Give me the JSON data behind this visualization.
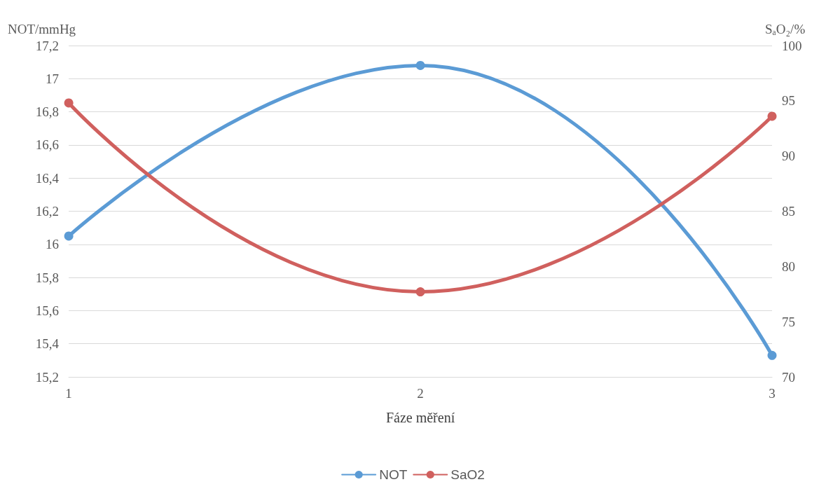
{
  "chart_data": {
    "type": "line",
    "xlabel": "Fáze měření",
    "ylabel": "NOT/mmHg",
    "y2label": "SₐO₂/%",
    "categories": [
      "1",
      "2",
      "3"
    ],
    "series": [
      {
        "name": "NOT",
        "color": "#5b9bd5",
        "values": [
          16.05,
          17.08,
          15.33
        ]
      },
      {
        "name": "SaO2",
        "color": "#d0605e",
        "values": [
          94.8,
          77.7,
          93.6
        ],
        "axis": "y2"
      }
    ],
    "ylim": [
      15.2,
      17.2
    ],
    "yticks": [
      {
        "value": 15.2,
        "label": "15,2"
      },
      {
        "value": 15.4,
        "label": "15,4"
      },
      {
        "value": 15.6,
        "label": "15,6"
      },
      {
        "value": 15.8,
        "label": "15,8"
      },
      16,
      {
        "value": 16.2,
        "label": "16,2"
      },
      {
        "value": 16.4,
        "label": "16,4"
      },
      {
        "value": 16.6,
        "label": "16,6"
      },
      {
        "value": 16.8,
        "label": "16,8"
      },
      17,
      {
        "value": 17.2,
        "label": "17,2"
      }
    ],
    "y2lim": [
      70,
      100
    ],
    "y2ticks": [
      70,
      75,
      80,
      85,
      90,
      95,
      100
    ],
    "grid": "y",
    "legend": "bottom",
    "marker": "circle",
    "line_style": "solid"
  }
}
